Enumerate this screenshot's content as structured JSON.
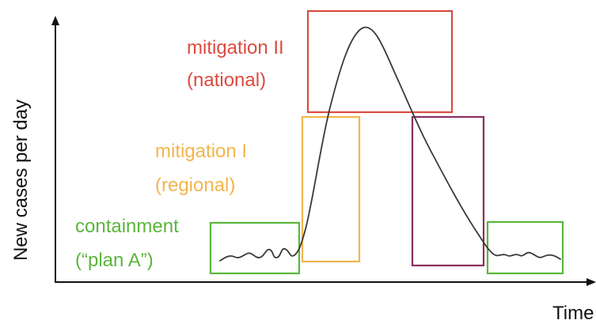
{
  "axes": {
    "ylabel": "New cases per day",
    "xlabel": "Time"
  },
  "phases": {
    "containment": {
      "line1": "containment",
      "line2": "(“plan A”)",
      "color": "#5bb63c"
    },
    "mitigation_1": {
      "line1": "mitigation I",
      "line2": "(regional)",
      "color": "#f2b54c"
    },
    "mitigation_2": {
      "line1": "mitigation II",
      "line2": "(national)",
      "color": "#dc4a3f"
    },
    "decline": {
      "color": "#8b2e62"
    },
    "post_containment": {
      "color": "#5bb63c"
    }
  },
  "curve_color": "#3a3a3a",
  "axis_color": "#111111"
}
